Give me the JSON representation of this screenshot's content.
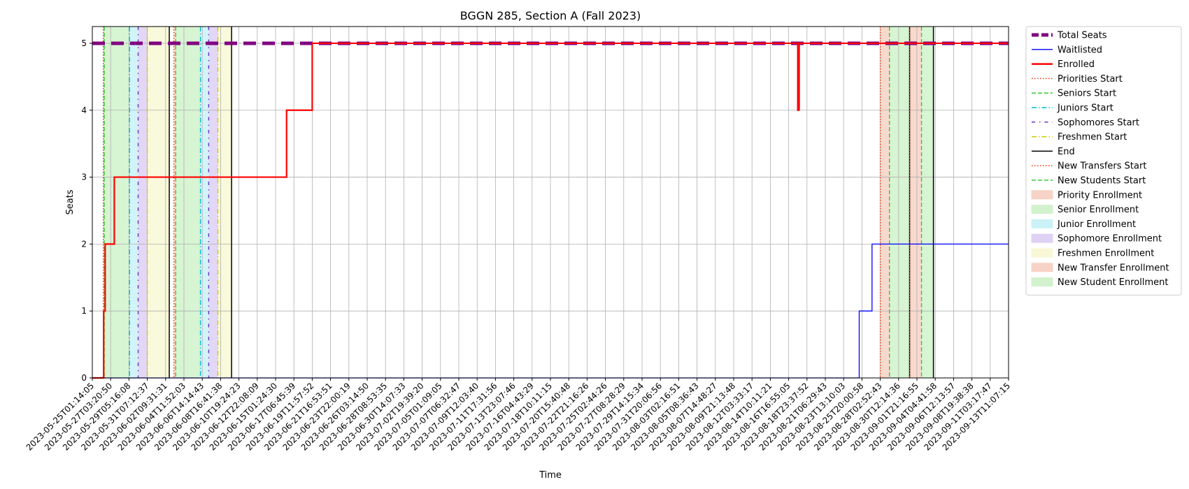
{
  "chart_data": {
    "type": "line",
    "title": "BGGN 285, Section A (Fall 2023)",
    "xlabel": "Time",
    "ylabel": "Seats",
    "ylim": [
      0,
      5.25
    ],
    "xlim": [
      "2023-05-25T01:14:05",
      "2023-09-13T11:07:15"
    ],
    "y_ticks": [
      0,
      1,
      2,
      3,
      4,
      5
    ],
    "x_ticks": [
      "2023-05-25T01:14:05",
      "2023-05-27T03:20:50",
      "2023-05-29T05:16:08",
      "2023-05-31T07:12:37",
      "2023-06-02T09:31:31",
      "2023-06-04T11:52:03",
      "2023-06-06T14:14:43",
      "2023-06-08T16:41:38",
      "2023-06-10T19:24:23",
      "2023-06-12T22:08:09",
      "2023-06-15T01:24:30",
      "2023-06-17T06:45:39",
      "2023-06-19T11:57:52",
      "2023-06-21T16:53:51",
      "2023-06-23T22:00:19",
      "2023-06-26T03:14:50",
      "2023-06-28T08:53:35",
      "2023-06-30T14:07:33",
      "2023-07-02T19:39:20",
      "2023-07-05T01:09:05",
      "2023-07-07T06:32:47",
      "2023-07-09T12:03:40",
      "2023-07-11T17:31:56",
      "2023-07-13T23:07:46",
      "2023-07-16T04:43:29",
      "2023-07-18T10:11:15",
      "2023-07-20T15:40:48",
      "2023-07-22T21:16:26",
      "2023-07-25T02:44:26",
      "2023-07-27T08:28:29",
      "2023-07-29T14:15:34",
      "2023-07-31T20:06:56",
      "2023-08-03T02:16:51",
      "2023-08-05T08:36:43",
      "2023-08-07T14:48:27",
      "2023-08-09T21:13:48",
      "2023-08-12T03:33:17",
      "2023-08-14T10:11:21",
      "2023-08-16T16:55:05",
      "2023-08-18T23:37:52",
      "2023-08-21T06:29:43",
      "2023-08-23T13:10:03",
      "2023-08-25T20:00:58",
      "2023-08-28T02:52:43",
      "2023-08-30T12:14:36",
      "2023-09-01T21:16:55",
      "2023-09-04T04:41:58",
      "2023-09-06T12:13:57",
      "2023-09-08T19:38:38",
      "2023-09-11T03:17:47",
      "2023-09-13T11:07:15"
    ],
    "series": [
      {
        "name": "Total Seats",
        "color": "#800080",
        "style": "dashed-thick",
        "points": [
          [
            0,
            5
          ],
          [
            50,
            5
          ]
        ]
      },
      {
        "name": "Waitlisted",
        "color": "#0000ff",
        "style": "step",
        "points": [
          [
            0,
            0
          ],
          [
            41.85,
            0
          ],
          [
            41.85,
            1
          ],
          [
            42.55,
            1
          ],
          [
            42.55,
            2
          ],
          [
            50,
            2
          ]
        ]
      },
      {
        "name": "Enrolled",
        "color": "#ff0000",
        "style": "step",
        "points": [
          [
            0,
            0
          ],
          [
            0.62,
            0
          ],
          [
            0.62,
            1
          ],
          [
            0.7,
            1
          ],
          [
            0.7,
            2
          ],
          [
            1.2,
            2
          ],
          [
            1.2,
            3
          ],
          [
            10.6,
            3
          ],
          [
            10.6,
            4
          ],
          [
            12.0,
            4
          ],
          [
            12.0,
            5
          ],
          [
            38.5,
            5
          ],
          [
            38.5,
            4
          ],
          [
            38.55,
            4
          ],
          [
            38.55,
            5
          ],
          [
            50,
            5
          ]
        ]
      }
    ],
    "period_markers": [
      {
        "name": "Priorities Start",
        "color": "#ff3300",
        "style": "dotted"
      },
      {
        "name": "Seniors Start",
        "color": "#33cc33",
        "style": "dashed"
      },
      {
        "name": "Juniors Start",
        "color": "#00bcd4",
        "style": "dashdot"
      },
      {
        "name": "Sophomores Start",
        "color": "#6633cc",
        "style": "dashdot-loose"
      },
      {
        "name": "Freshmen Start",
        "color": "#cccc00",
        "style": "dashdot"
      },
      {
        "name": "End",
        "color": "#000000",
        "style": "solid"
      },
      {
        "name": "New Transfers Start",
        "color": "#ff3300",
        "style": "dotted"
      },
      {
        "name": "New Students Start",
        "color": "#33cc33",
        "style": "dashed"
      }
    ],
    "shaded_regions": [
      {
        "name": "Priority Enrollment",
        "color": "#f4c9b8"
      },
      {
        "name": "Senior Enrollment",
        "color": "#c6efc0"
      },
      {
        "name": "Junior Enrollment",
        "color": "#bff0f5"
      },
      {
        "name": "Sophomore Enrollment",
        "color": "#d6c6f2"
      },
      {
        "name": "Freshmen Enrollment",
        "color": "#f7f7cc"
      },
      {
        "name": "New Transfer Enrollment",
        "color": "#f4c9b8"
      },
      {
        "name": "New Student Enrollment",
        "color": "#c6efc0"
      }
    ],
    "periods": [
      {
        "priority": [
          0.6,
          0.65
        ],
        "senior": [
          0.65,
          2.03
        ],
        "junior": [
          2.03,
          2.5
        ],
        "sophomore": [
          2.5,
          3.0
        ],
        "freshmen": [
          3.0,
          4.2
        ],
        "end": 4.2
      },
      {
        "priority": [
          4.45,
          4.55
        ],
        "senior": [
          4.55,
          5.9
        ],
        "junior": [
          5.9,
          6.35
        ],
        "sophomore": [
          6.35,
          6.85
        ],
        "freshmen": [
          6.85,
          7.6
        ],
        "end": 7.6
      },
      {
        "transfer": [
          43.0,
          43.5
        ],
        "student": [
          43.5,
          44.6
        ],
        "end": 44.6
      },
      {
        "transfer": [
          44.6,
          45.25
        ],
        "student": [
          45.25,
          45.9
        ],
        "end": 45.9
      }
    ],
    "grid": true,
    "legend_position": "outside-right"
  }
}
